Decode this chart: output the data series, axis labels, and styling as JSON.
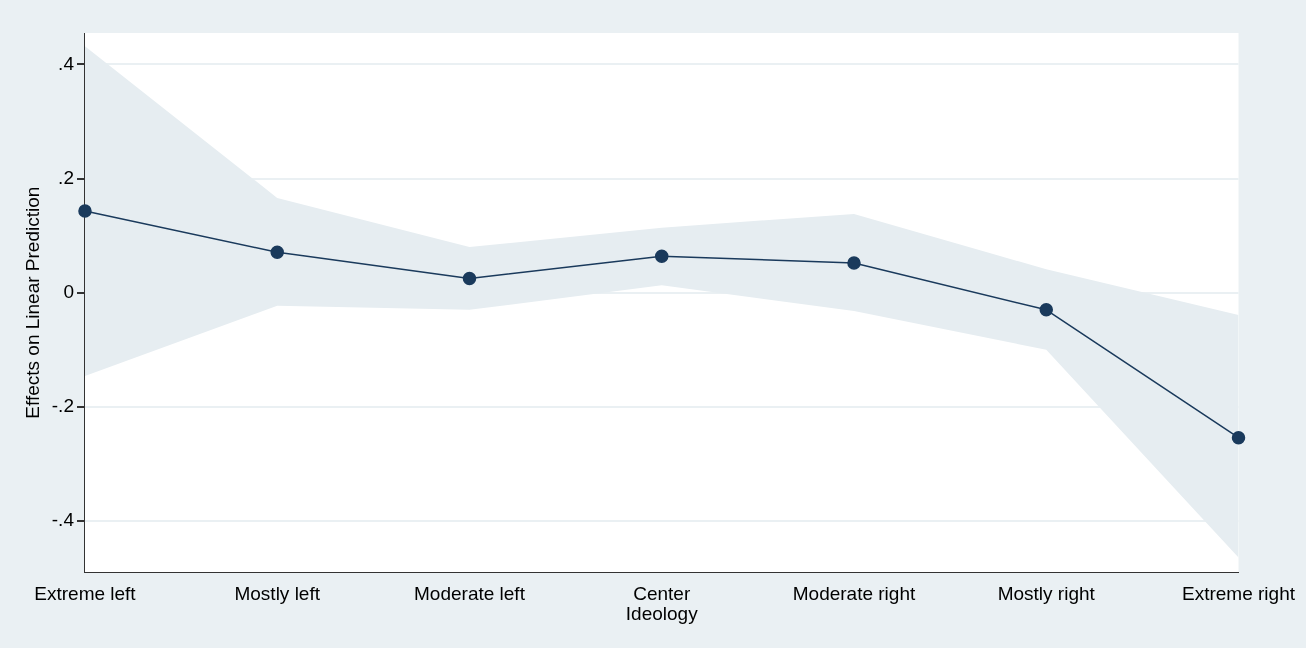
{
  "chart_data": {
    "type": "line",
    "xlabel": "Ideology",
    "ylabel": "Effects on Linear Prediction",
    "categories": [
      "Extreme left",
      "Mostly left",
      "Moderate left",
      "Center",
      "Moderate right",
      "Mostly right",
      "Extreme right"
    ],
    "series": [
      {
        "color": "#1a3a5c",
        "values": [
          0.143,
          0.071,
          0.025,
          0.064,
          0.052,
          -0.03,
          -0.254
        ],
        "lower": [
          -0.146,
          -0.023,
          -0.03,
          0.013,
          -0.032,
          -0.1,
          -0.464
        ],
        "upper": [
          0.432,
          0.166,
          0.08,
          0.114,
          0.138,
          0.041,
          -0.039
        ]
      }
    ],
    "ylim": [
      -0.49,
      0.455
    ],
    "yticks": [
      {
        "value": -0.4,
        "label": "-.4"
      },
      {
        "value": -0.2,
        "label": "-.2"
      },
      0,
      {
        "value": 0.2,
        "label": ".2"
      },
      {
        "value": 0.4,
        "label": ".4"
      }
    ],
    "grid": "y",
    "marker": "circle",
    "line_style": "solid",
    "legend": false
  }
}
